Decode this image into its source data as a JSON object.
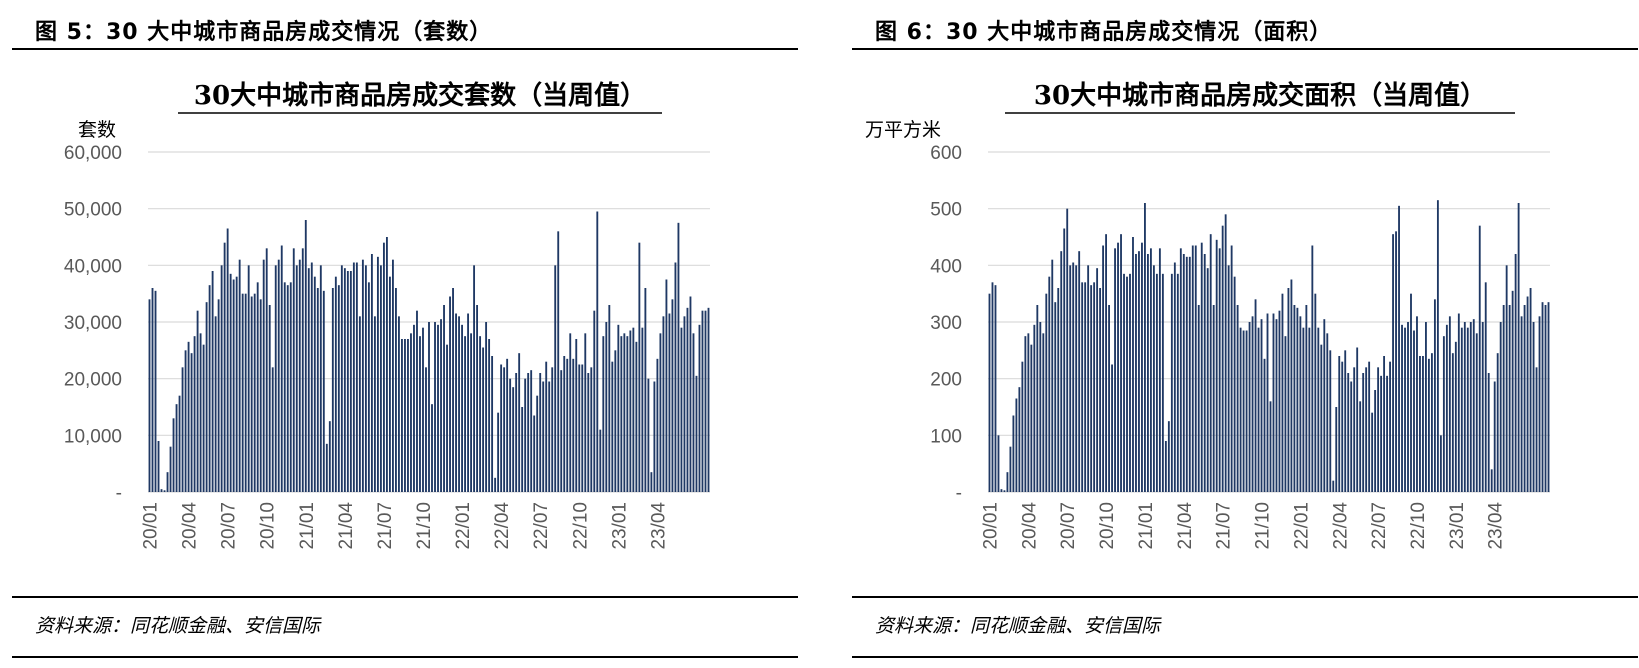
{
  "chart_data": [
    {
      "type": "bar",
      "figure_title": "图 5：30 大中城市商品房成交情况（套数）",
      "title": "30大中城市商品房成交套数（当周值）",
      "ylabel": "套数",
      "ylim": [
        0,
        60000
      ],
      "yticks": [
        "-",
        "10,000",
        "20,000",
        "30,000",
        "40,000",
        "50,000",
        "60,000"
      ],
      "xticks": [
        "20/01",
        "20/04",
        "20/07",
        "20/10",
        "21/01",
        "21/04",
        "21/07",
        "21/10",
        "22/01",
        "22/04",
        "22/07",
        "22/10",
        "23/01",
        "23/04"
      ],
      "grid": true,
      "color": "#1f3864",
      "source": "资料来源：同花顺金融、安信国际",
      "values": [
        34000,
        36000,
        35500,
        9000,
        500,
        300,
        3500,
        8000,
        13000,
        15500,
        17000,
        22000,
        25000,
        26500,
        24500,
        27500,
        32000,
        28000,
        26000,
        33500,
        36500,
        39000,
        31000,
        34000,
        40000,
        44000,
        46500,
        38500,
        37500,
        38000,
        41000,
        35000,
        35000,
        40000,
        34500,
        35000,
        37000,
        34000,
        41000,
        43000,
        33000,
        22000,
        40000,
        41000,
        43500,
        37000,
        36500,
        37000,
        43000,
        40000,
        41000,
        43000,
        48000,
        39500,
        40500,
        38000,
        36000,
        40000,
        35500,
        8500,
        12500,
        36000,
        38000,
        36500,
        40000,
        39500,
        39000,
        39000,
        40500,
        40500,
        31000,
        41000,
        40000,
        37000,
        42000,
        31000,
        41500,
        40000,
        44000,
        45000,
        38000,
        41000,
        36000,
        31000,
        27000,
        27000,
        27000,
        28000,
        29500,
        32000,
        27500,
        29000,
        22000,
        30000,
        15500,
        30000,
        29500,
        30500,
        33000,
        26000,
        34500,
        36000,
        31500,
        31000,
        29500,
        27500,
        31500,
        28000,
        40000,
        33000,
        27500,
        25500,
        30000,
        27000,
        24000,
        2500,
        14000,
        22500,
        22000,
        23500,
        20000,
        18500,
        21000,
        24500,
        15000,
        20000,
        21000,
        21500,
        13500,
        17000,
        21000,
        19500,
        23000,
        19500,
        22000,
        40000,
        46000,
        21500,
        24000,
        23500,
        28000,
        23500,
        27000,
        22500,
        22500,
        28000,
        21000,
        22000,
        32000,
        49500,
        11000,
        27500,
        30000,
        33000,
        23000,
        25000,
        29500,
        27500,
        28000,
        27500,
        28500,
        29000,
        26500,
        44000,
        29000,
        36000,
        20000,
        3500,
        19500,
        23500,
        28000,
        31000,
        37500,
        31500,
        34000,
        40500,
        47500,
        29000,
        31000,
        32500,
        34500,
        28000,
        20500,
        29500,
        32000,
        32000,
        32500
      ]
    },
    {
      "type": "bar",
      "figure_title": "图 6：30 大中城市商品房成交情况（面积）",
      "title": "30大中城市商品房成交面积（当周值）",
      "ylabel": "万平方米",
      "ylim": [
        0,
        600
      ],
      "yticks": [
        "-",
        "100",
        "200",
        "300",
        "400",
        "500",
        "600"
      ],
      "xticks": [
        "20/01",
        "20/04",
        "20/07",
        "20/10",
        "21/01",
        "21/04",
        "21/07",
        "21/10",
        "22/01",
        "22/04",
        "22/07",
        "22/10",
        "23/01",
        "23/04"
      ],
      "grid": true,
      "color": "#1f3864",
      "source": "资料来源：同花顺金融、安信国际",
      "values": [
        350,
        370,
        365,
        100,
        5,
        3,
        35,
        80,
        135,
        165,
        185,
        230,
        275,
        280,
        260,
        295,
        330,
        300,
        280,
        350,
        380,
        410,
        335,
        360,
        425,
        465,
        500,
        400,
        405,
        400,
        425,
        370,
        370,
        400,
        365,
        370,
        395,
        360,
        435,
        455,
        330,
        225,
        430,
        440,
        455,
        385,
        380,
        385,
        450,
        420,
        425,
        440,
        510,
        420,
        430,
        400,
        385,
        430,
        385,
        90,
        125,
        385,
        405,
        385,
        430,
        420,
        415,
        415,
        435,
        435,
        330,
        440,
        420,
        395,
        455,
        330,
        445,
        430,
        470,
        490,
        400,
        435,
        380,
        330,
        290,
        285,
        285,
        300,
        310,
        340,
        290,
        305,
        235,
        315,
        160,
        315,
        305,
        320,
        350,
        275,
        360,
        375,
        330,
        325,
        310,
        290,
        330,
        290,
        435,
        350,
        290,
        260,
        305,
        280,
        250,
        20,
        150,
        240,
        230,
        250,
        210,
        195,
        220,
        255,
        160,
        210,
        220,
        230,
        140,
        180,
        220,
        205,
        240,
        205,
        230,
        455,
        460,
        505,
        295,
        290,
        300,
        350,
        285,
        310,
        240,
        240,
        300,
        235,
        245,
        340,
        515,
        100,
        275,
        295,
        310,
        245,
        265,
        315,
        290,
        300,
        290,
        300,
        305,
        280,
        470,
        300,
        370,
        210,
        40,
        195,
        245,
        300,
        330,
        400,
        330,
        355,
        420,
        510,
        310,
        330,
        345,
        360,
        300,
        220,
        310,
        335,
        330,
        335
      ]
    }
  ]
}
